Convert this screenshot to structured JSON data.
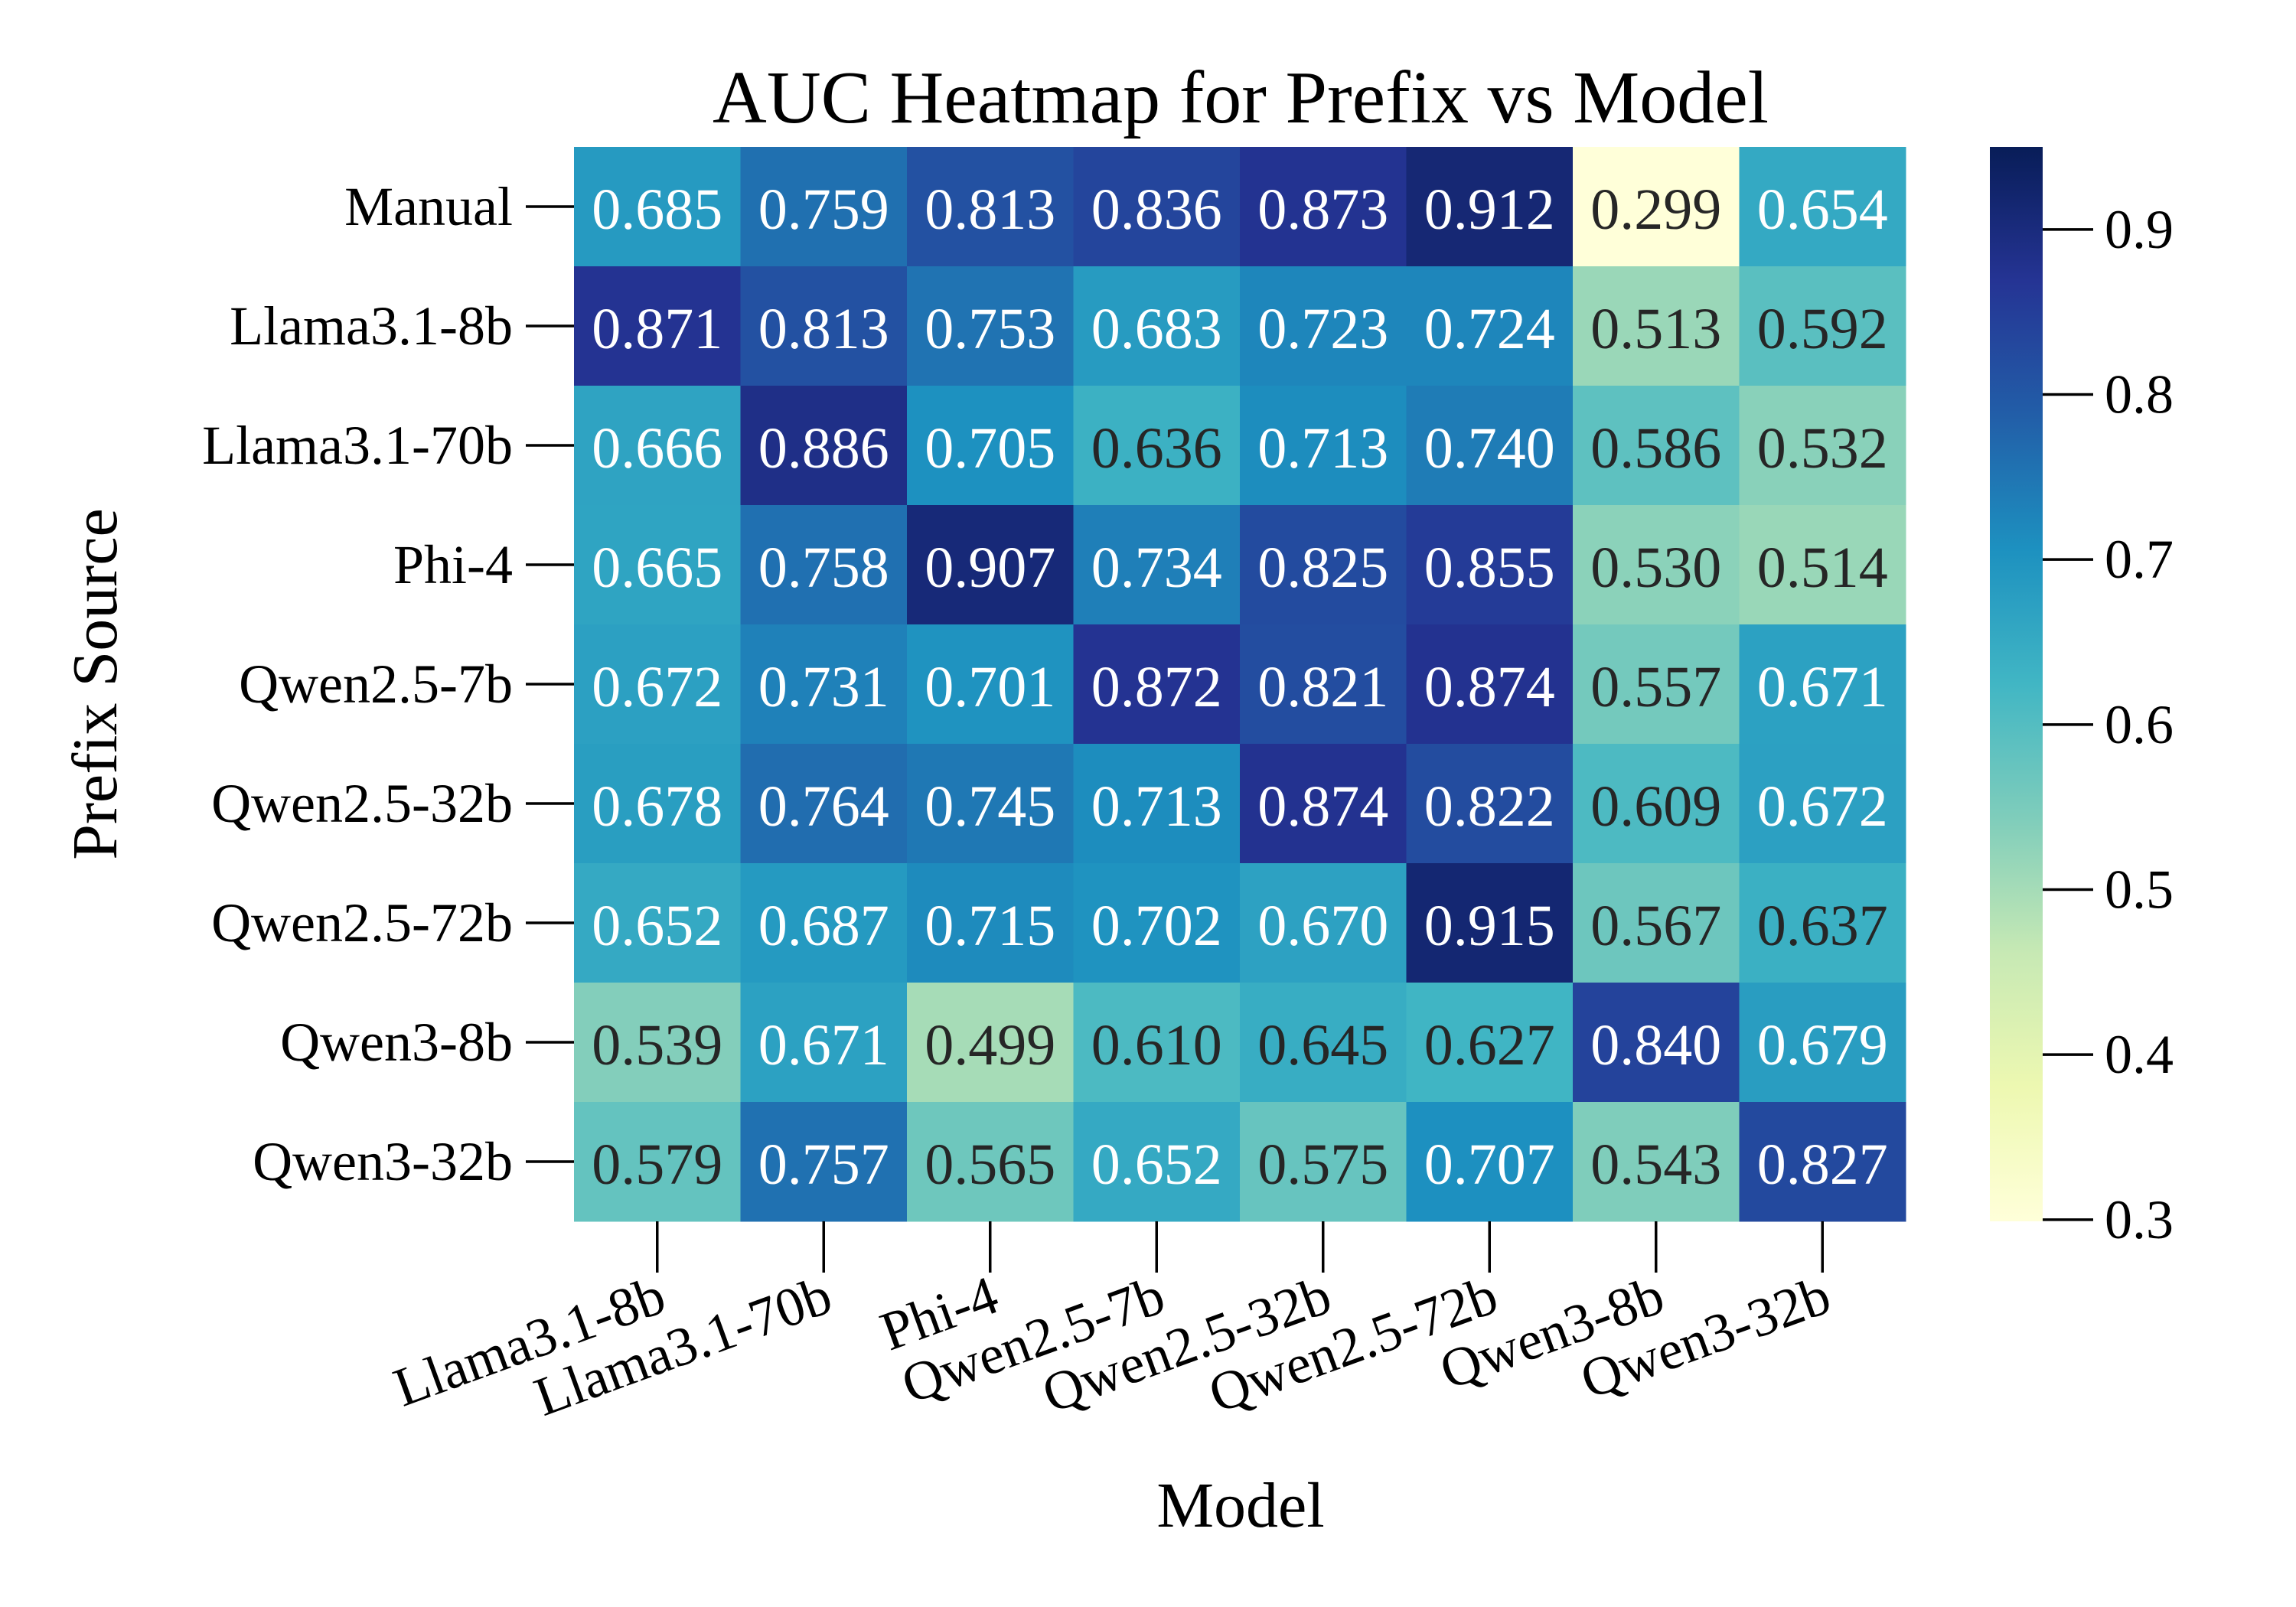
{
  "chart_data": {
    "type": "heatmap",
    "title": "AUC Heatmap for Prefix vs Model",
    "xlabel": "Model",
    "ylabel": "Prefix Source",
    "x_categories": [
      "Llama3.1-8b",
      "Llama3.1-70b",
      "Phi-4",
      "Qwen2.5-7b",
      "Qwen2.5-32b",
      "Qwen2.5-72b",
      "Qwen3-8b",
      "Qwen3-32b"
    ],
    "y_categories": [
      "Manual",
      "Llama3.1-8b",
      "Llama3.1-70b",
      "Phi-4",
      "Qwen2.5-7b",
      "Qwen2.5-32b",
      "Qwen2.5-72b",
      "Qwen3-8b",
      "Qwen3-32b"
    ],
    "values": [
      [
        0.685,
        0.759,
        0.813,
        0.836,
        0.873,
        0.912,
        0.299,
        0.654
      ],
      [
        0.871,
        0.813,
        0.753,
        0.683,
        0.723,
        0.724,
        0.513,
        0.592
      ],
      [
        0.666,
        0.886,
        0.705,
        0.636,
        0.713,
        0.74,
        0.586,
        0.532
      ],
      [
        0.665,
        0.758,
        0.907,
        0.734,
        0.825,
        0.855,
        0.53,
        0.514
      ],
      [
        0.672,
        0.731,
        0.701,
        0.872,
        0.821,
        0.874,
        0.557,
        0.671
      ],
      [
        0.678,
        0.764,
        0.745,
        0.713,
        0.874,
        0.822,
        0.609,
        0.672
      ],
      [
        0.652,
        0.687,
        0.715,
        0.702,
        0.67,
        0.915,
        0.567,
        0.637
      ],
      [
        0.539,
        0.671,
        0.499,
        0.61,
        0.645,
        0.627,
        0.84,
        0.679
      ],
      [
        0.579,
        0.757,
        0.565,
        0.652,
        0.575,
        0.707,
        0.543,
        0.827
      ]
    ],
    "colormap": "YlGnBu",
    "colormap_stops": [
      "#ffffd9",
      "#edf8b1",
      "#c7e9b4",
      "#7fcdbb",
      "#41b6c4",
      "#1d91c0",
      "#225ea8",
      "#253494",
      "#081d58"
    ],
    "color_range": [
      0.299,
      0.95
    ],
    "colorbar_ticks": [
      "0.3",
      "0.4",
      "0.5",
      "0.6",
      "0.7",
      "0.8",
      "0.9"
    ],
    "annotation_dark_color": "#262626",
    "annotation_light_color": "#ffffff",
    "grid": false,
    "legend": "colorbar-right"
  }
}
